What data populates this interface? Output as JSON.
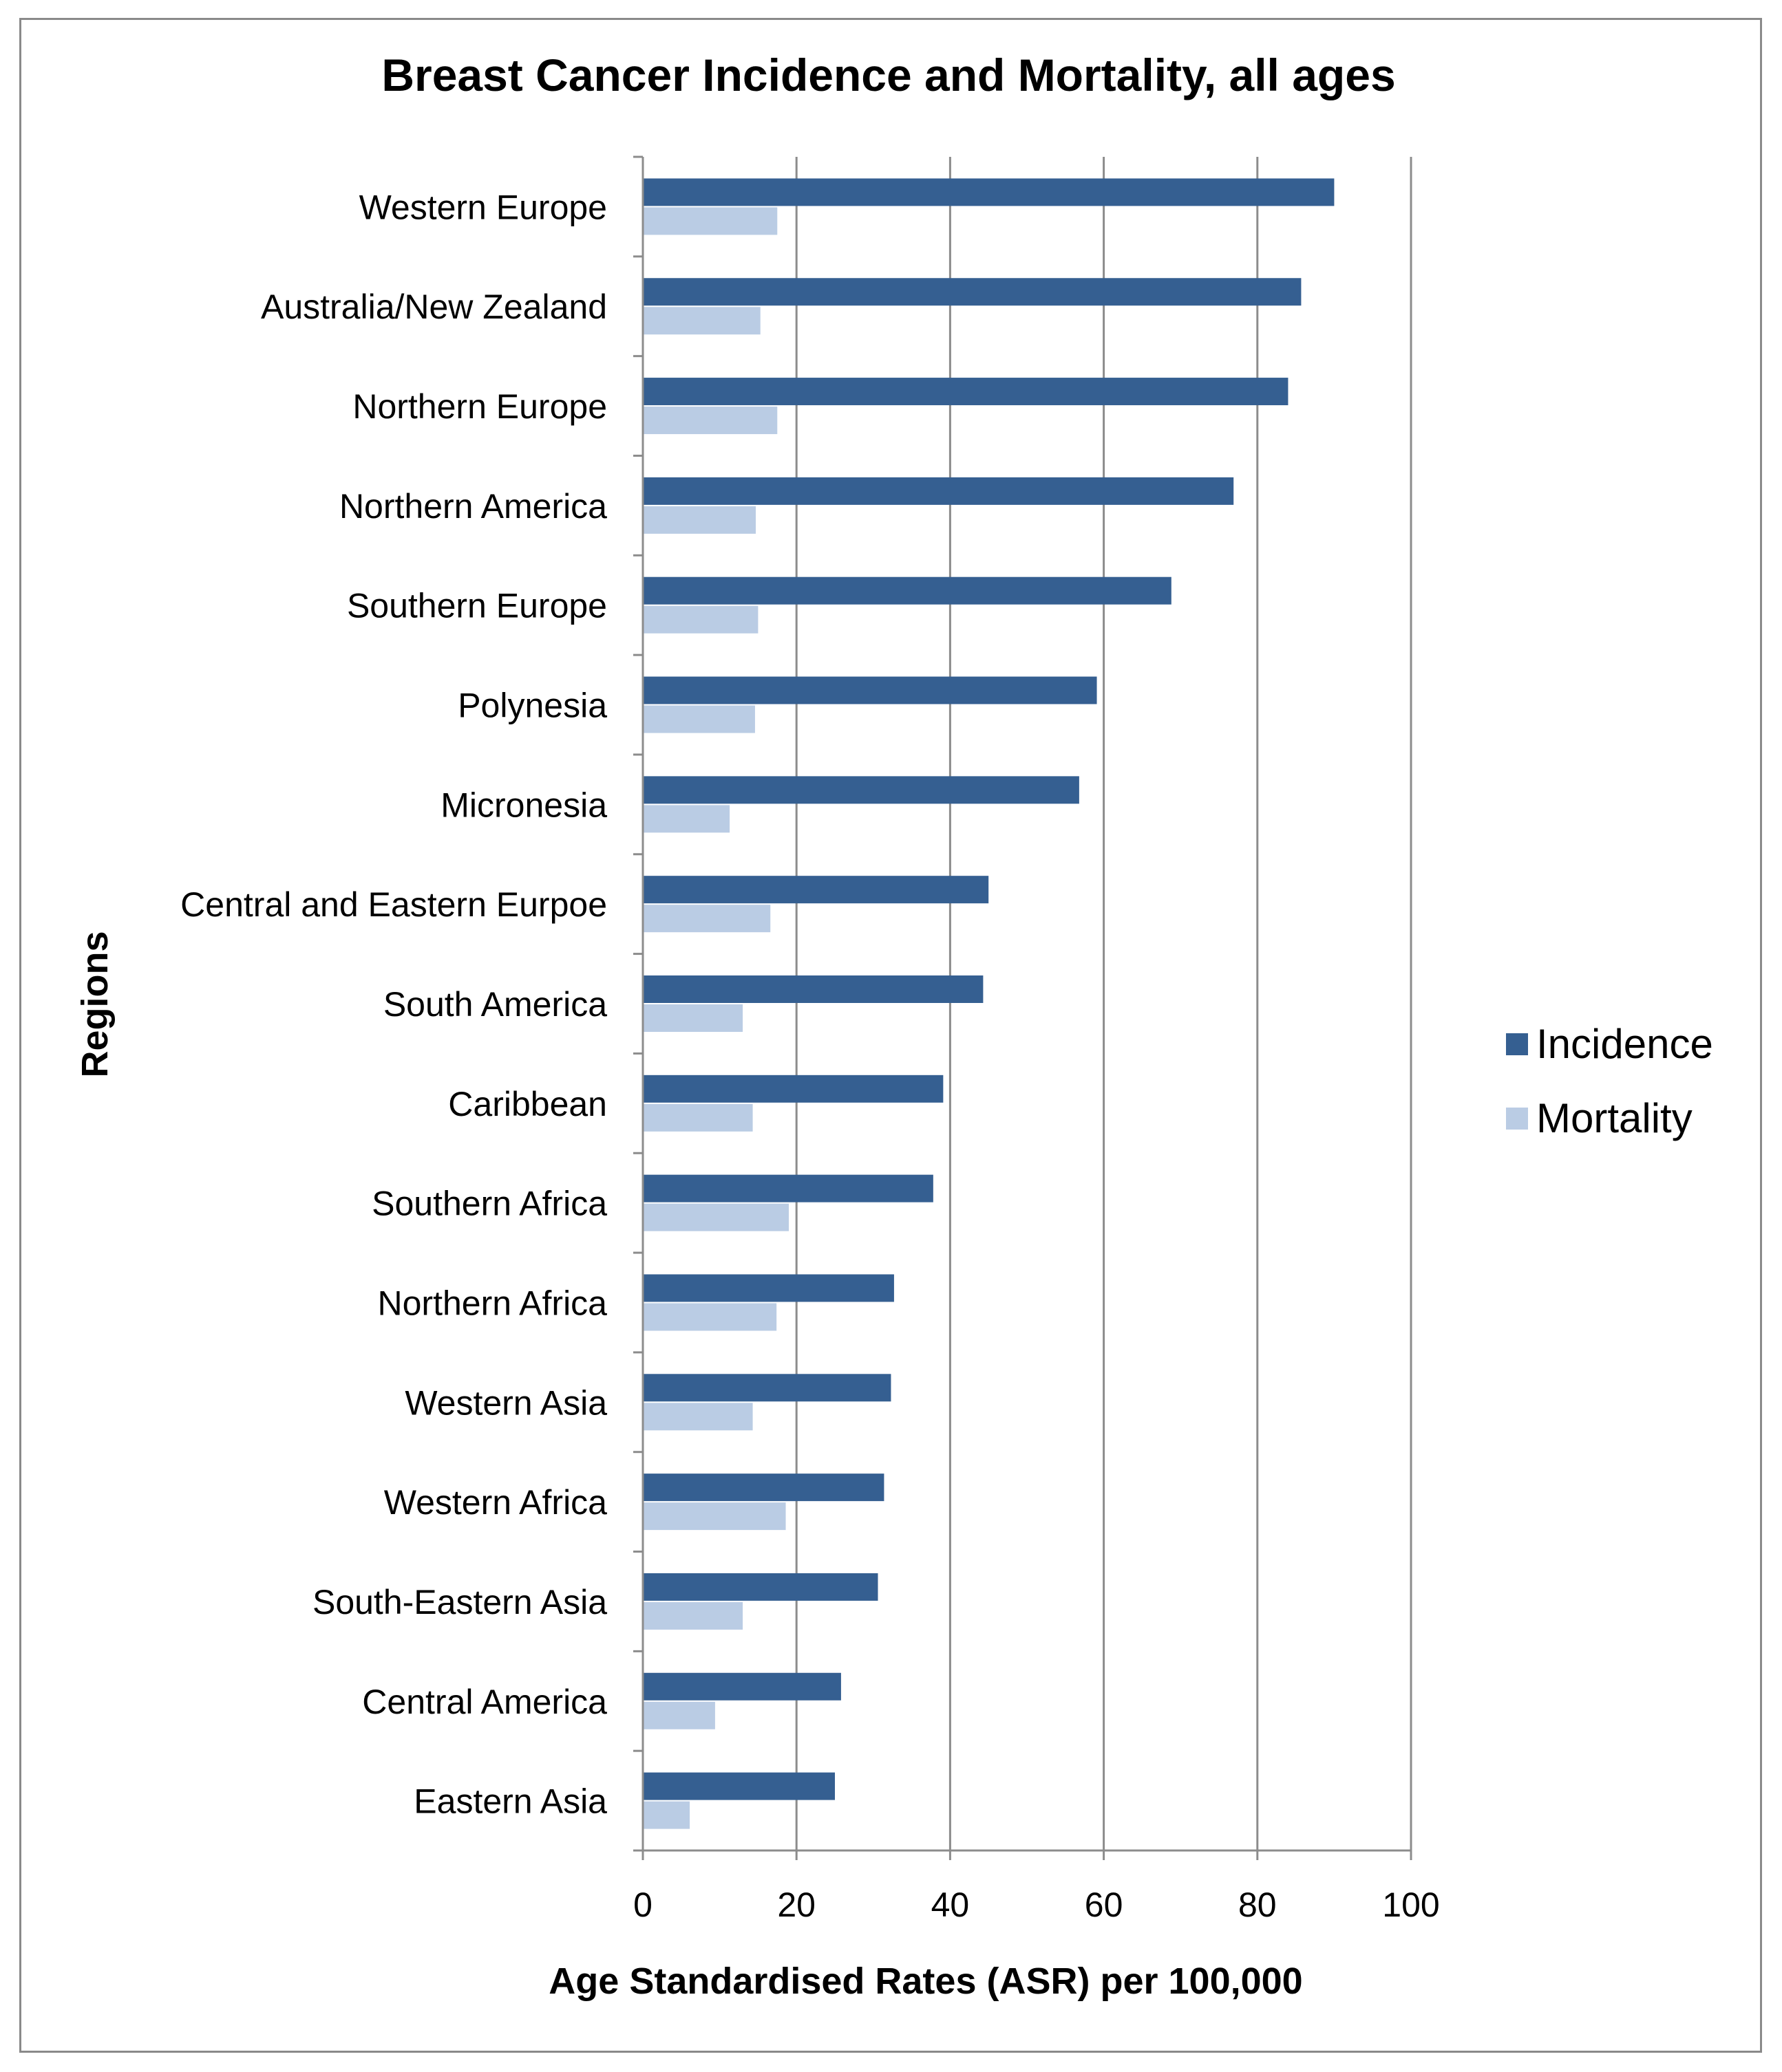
{
  "chart_data": {
    "type": "bar",
    "orientation": "horizontal",
    "title": "Breast Cancer Incidence and Mortality, all ages",
    "xlabel": "Age Standardised Rates (ASR) per 100,000",
    "ylabel": "Regions",
    "xlim": [
      0,
      100
    ],
    "xticks": [
      "0",
      "20",
      "40",
      "60",
      "80",
      "100"
    ],
    "grid": "vertical major gridlines",
    "legend_position": "right",
    "categories": [
      "Western Europe",
      "Australia/New Zealand",
      "Northern Europe",
      "Northern America",
      "Southern Europe",
      "Polynesia",
      "Micronesia",
      "Central and Eastern Eurpoe",
      "South America",
      "Caribbean",
      "Southern Africa",
      "Northern Africa",
      "Western Asia",
      "Western Africa",
      "South-Eastern Asia",
      "Central America",
      "Eastern Asia"
    ],
    "series": [
      {
        "name": "Incidence",
        "color": "#355f91",
        "values": [
          90.0,
          85.7,
          84.0,
          76.9,
          68.8,
          59.1,
          56.8,
          45.0,
          44.3,
          39.1,
          37.8,
          32.7,
          32.3,
          31.4,
          30.6,
          25.8,
          25.0
        ]
      },
      {
        "name": "Mortality",
        "color": "#bacce4",
        "values": [
          17.5,
          15.3,
          17.5,
          14.7,
          15.0,
          14.6,
          11.3,
          16.6,
          13.0,
          14.3,
          19.0,
          17.4,
          14.3,
          18.6,
          13.0,
          9.4,
          6.1
        ]
      }
    ]
  }
}
